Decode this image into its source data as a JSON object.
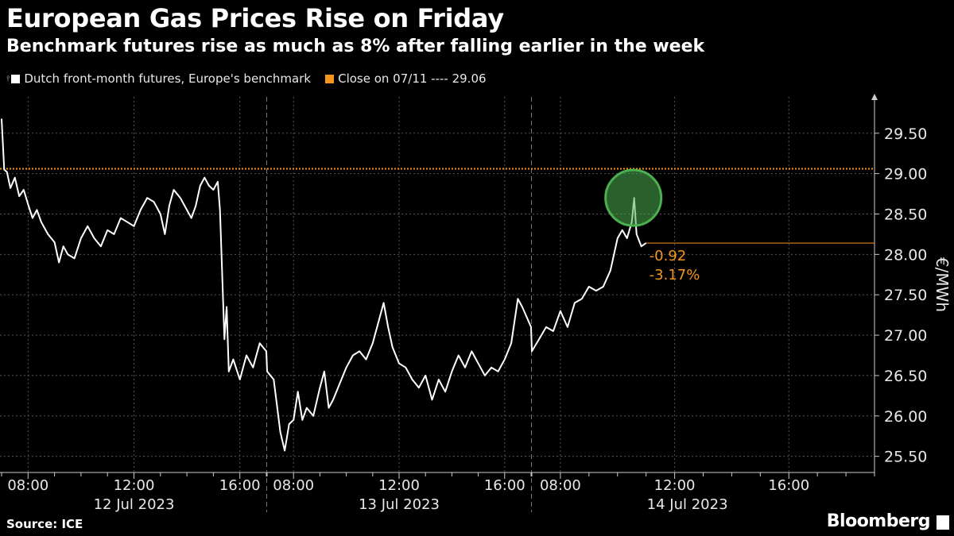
{
  "source": "Source: ICE",
  "brand": "Bloomberg",
  "chart_data": {
    "type": "line",
    "title": "European Gas Prices Rise on Friday",
    "subtitle": "Benchmark futures rise as much as 8% after falling earlier in the week",
    "ylabel": "€/MWh",
    "ylim": [
      25.3,
      29.95
    ],
    "yticks": [
      "25.50",
      "26.00",
      "26.50",
      "27.00",
      "27.50",
      "28.00",
      "28.50",
      "29.00",
      "29.50"
    ],
    "grid": true,
    "y_axis_side": "right",
    "legend": [
      {
        "label": "Dutch front-month futures, Europe's benchmark",
        "color": "#ffffff"
      },
      {
        "label": "Close on 07/11 ---- 29.06",
        "color": "#f5951c"
      }
    ],
    "reference_line": {
      "value": 29.06,
      "color": "#f5951c"
    },
    "last_value": 28.14,
    "annotations": {
      "change": "-0.92",
      "change_pct": "-3.17%",
      "color": "#f5951c"
    },
    "highlight": {
      "x": "2023-07-14 10:35",
      "y": 28.7,
      "color": "#4caf50"
    },
    "sessions": [
      {
        "date": "12 Jul 2023",
        "start": "07:00",
        "end": "17:00",
        "ticks": [
          "08:00",
          "12:00",
          "16:00"
        ]
      },
      {
        "date": "13 Jul 2023",
        "start": "07:00",
        "end": "17:00",
        "ticks": [
          "08:00",
          "12:00",
          "16:00"
        ]
      },
      {
        "date": "14 Jul 2023",
        "start": "07:00",
        "end": "19:00",
        "ticks": [
          "08:00",
          "12:00",
          "16:00"
        ]
      }
    ],
    "series": [
      {
        "color": "#ffffff",
        "points": [
          [
            "2023-07-12 07:00",
            29.68
          ],
          [
            "2023-07-12 07:06",
            29.05
          ],
          [
            "2023-07-12 07:12",
            29.02
          ],
          [
            "2023-07-12 07:20",
            28.82
          ],
          [
            "2023-07-12 07:30",
            28.95
          ],
          [
            "2023-07-12 07:40",
            28.72
          ],
          [
            "2023-07-12 07:50",
            28.8
          ],
          [
            "2023-07-12 08:00",
            28.62
          ],
          [
            "2023-07-12 08:10",
            28.45
          ],
          [
            "2023-07-12 08:20",
            28.55
          ],
          [
            "2023-07-12 08:30",
            28.4
          ],
          [
            "2023-07-12 08:45",
            28.25
          ],
          [
            "2023-07-12 09:00",
            28.15
          ],
          [
            "2023-07-12 09:10",
            27.9
          ],
          [
            "2023-07-12 09:20",
            28.1
          ],
          [
            "2023-07-12 09:30",
            28.0
          ],
          [
            "2023-07-12 09:45",
            27.95
          ],
          [
            "2023-07-12 10:00",
            28.2
          ],
          [
            "2023-07-12 10:15",
            28.35
          ],
          [
            "2023-07-12 10:30",
            28.2
          ],
          [
            "2023-07-12 10:45",
            28.1
          ],
          [
            "2023-07-12 11:00",
            28.3
          ],
          [
            "2023-07-12 11:15",
            28.25
          ],
          [
            "2023-07-12 11:30",
            28.45
          ],
          [
            "2023-07-12 11:45",
            28.4
          ],
          [
            "2023-07-12 12:00",
            28.35
          ],
          [
            "2023-07-12 12:15",
            28.55
          ],
          [
            "2023-07-12 12:30",
            28.7
          ],
          [
            "2023-07-12 12:45",
            28.65
          ],
          [
            "2023-07-12 13:00",
            28.5
          ],
          [
            "2023-07-12 13:10",
            28.25
          ],
          [
            "2023-07-12 13:20",
            28.6
          ],
          [
            "2023-07-12 13:30",
            28.8
          ],
          [
            "2023-07-12 13:45",
            28.7
          ],
          [
            "2023-07-12 14:00",
            28.55
          ],
          [
            "2023-07-12 14:10",
            28.45
          ],
          [
            "2023-07-12 14:20",
            28.6
          ],
          [
            "2023-07-12 14:30",
            28.85
          ],
          [
            "2023-07-12 14:40",
            28.95
          ],
          [
            "2023-07-12 14:50",
            28.85
          ],
          [
            "2023-07-12 15:00",
            28.8
          ],
          [
            "2023-07-12 15:10",
            28.9
          ],
          [
            "2023-07-12 15:15",
            28.55
          ],
          [
            "2023-07-12 15:25",
            26.95
          ],
          [
            "2023-07-12 15:30",
            27.35
          ],
          [
            "2023-07-12 15:35",
            26.55
          ],
          [
            "2023-07-12 15:45",
            26.7
          ],
          [
            "2023-07-12 16:00",
            26.45
          ],
          [
            "2023-07-12 16:15",
            26.75
          ],
          [
            "2023-07-12 16:30",
            26.6
          ],
          [
            "2023-07-12 16:45",
            26.9
          ],
          [
            "2023-07-12 17:00",
            26.8
          ],
          [
            "2023-07-13 07:00",
            26.55
          ],
          [
            "2023-07-13 07:15",
            26.45
          ],
          [
            "2023-07-13 07:30",
            25.8
          ],
          [
            "2023-07-13 07:40",
            25.57
          ],
          [
            "2023-07-13 07:50",
            25.9
          ],
          [
            "2023-07-13 08:00",
            25.95
          ],
          [
            "2023-07-13 08:10",
            26.3
          ],
          [
            "2023-07-13 08:20",
            25.95
          ],
          [
            "2023-07-13 08:30",
            26.1
          ],
          [
            "2023-07-13 08:45",
            26.0
          ],
          [
            "2023-07-13 09:00",
            26.35
          ],
          [
            "2023-07-13 09:10",
            26.55
          ],
          [
            "2023-07-13 09:20",
            26.1
          ],
          [
            "2023-07-13 09:30",
            26.2
          ],
          [
            "2023-07-13 09:45",
            26.4
          ],
          [
            "2023-07-13 10:00",
            26.6
          ],
          [
            "2023-07-13 10:15",
            26.75
          ],
          [
            "2023-07-13 10:30",
            26.8
          ],
          [
            "2023-07-13 10:45",
            26.7
          ],
          [
            "2023-07-13 11:00",
            26.9
          ],
          [
            "2023-07-13 11:15",
            27.2
          ],
          [
            "2023-07-13 11:25",
            27.4
          ],
          [
            "2023-07-13 11:35",
            27.1
          ],
          [
            "2023-07-13 11:45",
            26.85
          ],
          [
            "2023-07-13 12:00",
            26.65
          ],
          [
            "2023-07-13 12:15",
            26.6
          ],
          [
            "2023-07-13 12:30",
            26.45
          ],
          [
            "2023-07-13 12:45",
            26.35
          ],
          [
            "2023-07-13 13:00",
            26.5
          ],
          [
            "2023-07-13 13:15",
            26.2
          ],
          [
            "2023-07-13 13:30",
            26.45
          ],
          [
            "2023-07-13 13:45",
            26.3
          ],
          [
            "2023-07-13 14:00",
            26.55
          ],
          [
            "2023-07-13 14:15",
            26.75
          ],
          [
            "2023-07-13 14:30",
            26.6
          ],
          [
            "2023-07-13 14:45",
            26.8
          ],
          [
            "2023-07-13 15:00",
            26.65
          ],
          [
            "2023-07-13 15:15",
            26.5
          ],
          [
            "2023-07-13 15:30",
            26.6
          ],
          [
            "2023-07-13 15:45",
            26.55
          ],
          [
            "2023-07-13 16:00",
            26.7
          ],
          [
            "2023-07-13 16:15",
            26.9
          ],
          [
            "2023-07-13 16:30",
            27.45
          ],
          [
            "2023-07-13 16:40",
            27.35
          ],
          [
            "2023-07-13 17:00",
            27.1
          ],
          [
            "2023-07-14 07:00",
            26.8
          ],
          [
            "2023-07-14 07:15",
            26.95
          ],
          [
            "2023-07-14 07:30",
            27.1
          ],
          [
            "2023-07-14 07:45",
            27.05
          ],
          [
            "2023-07-14 08:00",
            27.3
          ],
          [
            "2023-07-14 08:15",
            27.1
          ],
          [
            "2023-07-14 08:30",
            27.4
          ],
          [
            "2023-07-14 08:45",
            27.45
          ],
          [
            "2023-07-14 09:00",
            27.6
          ],
          [
            "2023-07-14 09:15",
            27.55
          ],
          [
            "2023-07-14 09:30",
            27.6
          ],
          [
            "2023-07-14 09:45",
            27.8
          ],
          [
            "2023-07-14 10:00",
            28.2
          ],
          [
            "2023-07-14 10:10",
            28.3
          ],
          [
            "2023-07-14 10:20",
            28.2
          ],
          [
            "2023-07-14 10:30",
            28.4
          ],
          [
            "2023-07-14 10:35",
            28.7
          ],
          [
            "2023-07-14 10:40",
            28.25
          ],
          [
            "2023-07-14 10:50",
            28.1
          ],
          [
            "2023-07-14 11:00",
            28.14
          ]
        ]
      }
    ]
  }
}
